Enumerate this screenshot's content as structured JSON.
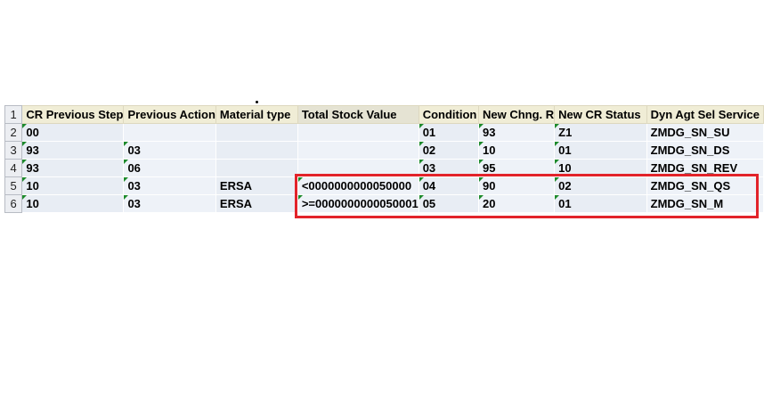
{
  "sheet": {
    "row_numbers": [
      "1",
      "2",
      "3",
      "4",
      "5",
      "6"
    ],
    "headers": [
      "CR Previous Step",
      "Previous Action",
      "Material type",
      "Total Stock Value",
      "Condition",
      "New Chng. R",
      "New CR Status",
      "Dyn Agt Sel Service"
    ],
    "rows": [
      [
        "00",
        "",
        "",
        "",
        "01",
        "93",
        "Z1",
        "ZMDG_SN_SU"
      ],
      [
        "93",
        "03",
        "",
        "",
        "02",
        "10",
        "01",
        "ZMDG_SN_DS"
      ],
      [
        "93",
        "06",
        "",
        "",
        "03",
        "95",
        "10",
        "ZMDG_SN_REV"
      ],
      [
        "10",
        "03",
        "ERSA",
        "<0000000000050000",
        "04",
        "90",
        "02",
        "ZMDG_SN_QS"
      ],
      [
        "10",
        "03",
        "ERSA",
        ">=0000000000050001",
        "05",
        "20",
        "01",
        "ZMDG_SN_M"
      ]
    ]
  },
  "colors": {
    "highlight_border": "#e2232a",
    "header_fill": "#f0edd6",
    "row_fill": "#e8edf4",
    "text_indicator": "#1d8a2c"
  }
}
